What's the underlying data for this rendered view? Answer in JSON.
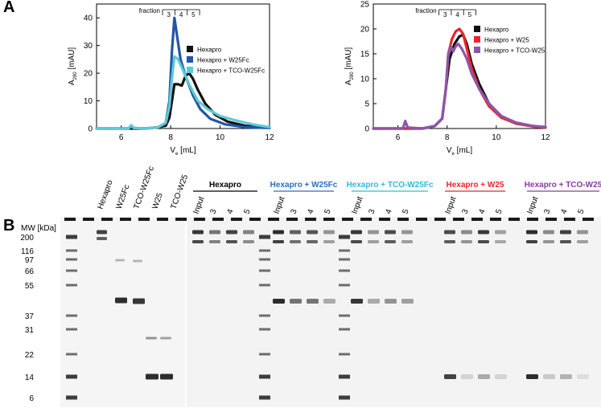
{
  "panels": {
    "a": "A",
    "b": "B"
  },
  "chart_data": [
    {
      "type": "line",
      "ylabel_main": "A",
      "ylabel_sub": "280",
      "ylabel_unit": " [mAU]",
      "xlabel_main": "V",
      "xlabel_sub": "e",
      "xlabel_unit": " [mL]",
      "xlim": [
        5,
        12
      ],
      "ylim": [
        0,
        45
      ],
      "xticks": [
        6,
        8,
        10,
        12
      ],
      "yticks": [
        0,
        10,
        20,
        30,
        40
      ],
      "fraction_label": "fraction",
      "fractions": [
        {
          "label": "3",
          "start": 7.67,
          "end": 8.17
        },
        {
          "label": "4",
          "start": 8.17,
          "end": 8.67
        },
        {
          "label": "5",
          "start": 8.67,
          "end": 9.17
        }
      ],
      "series": [
        {
          "name": "Hexapro",
          "color": "#111111",
          "x": [
            5.0,
            7.0,
            7.5,
            7.8,
            7.95,
            8.05,
            8.15,
            8.3,
            8.45,
            8.6,
            8.75,
            8.9,
            9.1,
            9.4,
            9.8,
            10.3,
            11.0,
            12.0
          ],
          "y": [
            0,
            0,
            0.5,
            1,
            4,
            10,
            16,
            16,
            15.5,
            19,
            20,
            18,
            14,
            9,
            5,
            2.5,
            1,
            0.3
          ]
        },
        {
          "name": "Hexapro + W25Fc",
          "color": "#2255aa",
          "x": [
            5.0,
            6.3,
            6.4,
            6.5,
            7.0,
            7.5,
            7.8,
            7.95,
            8.05,
            8.15,
            8.25,
            8.4,
            8.6,
            8.9,
            9.2,
            9.6,
            10.2,
            11.0,
            12.0
          ],
          "y": [
            0,
            0,
            1,
            0.2,
            0,
            0.5,
            2,
            10,
            28,
            40,
            34,
            25,
            19,
            12,
            7,
            3.5,
            1.5,
            0.5,
            0.2
          ]
        },
        {
          "name": "Hexapro + TCO-W25Fc",
          "color": "#5ec9d6",
          "x": [
            5.0,
            6.3,
            6.4,
            6.5,
            7.0,
            7.5,
            7.8,
            7.95,
            8.05,
            8.15,
            8.3,
            8.5,
            8.8,
            9.1,
            9.5,
            10.0,
            10.6,
            11.3,
            12.0
          ],
          "y": [
            0,
            0,
            1.2,
            0.2,
            0,
            0.5,
            2,
            8,
            18,
            26,
            25,
            21,
            15,
            10,
            7,
            4.5,
            3,
            1.5,
            0.5
          ]
        }
      ]
    },
    {
      "type": "line",
      "ylabel_main": "A",
      "ylabel_sub": "280",
      "ylabel_unit": " [mAU]",
      "xlabel_main": "V",
      "xlabel_sub": "e",
      "xlabel_unit": " [mL]",
      "xlim": [
        5,
        12
      ],
      "ylim": [
        0,
        25
      ],
      "xticks": [
        6,
        8,
        10,
        12
      ],
      "yticks": [
        0,
        5,
        10,
        15,
        20,
        25
      ],
      "fraction_label": "fraction",
      "fractions": [
        {
          "label": "3",
          "start": 7.67,
          "end": 8.17
        },
        {
          "label": "4",
          "start": 8.17,
          "end": 8.67
        },
        {
          "label": "5",
          "start": 8.67,
          "end": 9.17
        }
      ],
      "series": [
        {
          "name": "Hexapro",
          "color": "#111111",
          "x": [
            5.0,
            7.0,
            7.5,
            7.8,
            7.95,
            8.1,
            8.3,
            8.5,
            8.65,
            8.8,
            9.0,
            9.3,
            9.7,
            10.2,
            10.8,
            11.5,
            12.0
          ],
          "y": [
            0,
            0,
            0.5,
            2,
            8,
            14,
            17,
            18.5,
            18.8,
            17,
            13,
            9,
            5,
            2.5,
            1,
            0.5,
            0.2
          ]
        },
        {
          "name": "Hexapro + W25",
          "color": "#e8262a",
          "x": [
            5.0,
            7.0,
            7.5,
            7.8,
            7.95,
            8.05,
            8.2,
            8.35,
            8.5,
            8.65,
            8.8,
            9.0,
            9.3,
            9.7,
            10.2,
            10.8,
            11.5,
            12.0
          ],
          "y": [
            0,
            0,
            0.5,
            2,
            8,
            15,
            18,
            19.5,
            20,
            19,
            16,
            12,
            8,
            4.5,
            2.2,
            1,
            0.4,
            0.2
          ]
        },
        {
          "name": "Hexapro + TCO-W25",
          "color": "#8e55a8",
          "x": [
            5.0,
            6.2,
            6.3,
            6.4,
            7.0,
            7.5,
            7.8,
            7.95,
            8.05,
            8.15,
            8.25,
            8.35,
            8.45,
            8.6,
            8.8,
            9.0,
            9.3,
            9.7,
            10.2,
            10.8,
            11.5,
            12.0
          ],
          "y": [
            0,
            0,
            1.5,
            0.2,
            0,
            0.5,
            2,
            8,
            15,
            16.5,
            15.5,
            16.5,
            17,
            16,
            14,
            11,
            8,
            5,
            2.5,
            1.2,
            0.5,
            0.3
          ]
        }
      ]
    }
  ],
  "gel": {
    "mw_header": "MW [kDa]",
    "mw_markers": [
      "200",
      "116",
      "97",
      "66",
      "55",
      "37",
      "31",
      "22",
      "14",
      "6"
    ],
    "single_lanes": [
      {
        "label": "Hexapro",
        "x": 127
      },
      {
        "label": "W25Fc",
        "x": 150
      },
      {
        "label": "TCO-W25Fc",
        "x": 172
      },
      {
        "label": "W25",
        "x": 195
      },
      {
        "label": "TCO-W25",
        "x": 218
      }
    ],
    "groups": [
      {
        "title": "Hexapro",
        "color": "#000000",
        "lanes": [
          "Input",
          "3",
          "4",
          "5"
        ]
      },
      {
        "title": "Hexapro + W25Fc",
        "color": "#2a6fbf",
        "lanes": [
          "Input",
          "3",
          "4",
          "5"
        ]
      },
      {
        "title": "Hexapro + TCO-W25Fc",
        "color": "#34b7db",
        "lanes": [
          "Input",
          "3",
          "4",
          "5"
        ]
      },
      {
        "title": "Hexapro + W25",
        "color": "#e8262a",
        "lanes": [
          "Input",
          "3",
          "4",
          "5"
        ]
      },
      {
        "title": "Hexapro + TCO-W25",
        "color": "#8e3a9e",
        "lanes": [
          "Input",
          "3",
          "4",
          "5"
        ]
      }
    ]
  }
}
